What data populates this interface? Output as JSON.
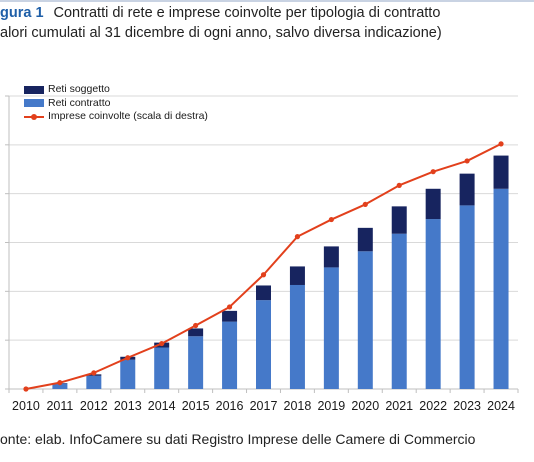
{
  "header": {
    "figure_label": "gura 1",
    "title": "Contratti di rete e imprese coinvolte per tipologia di contratto",
    "subtitle": "alori cumulati al 31 dicembre di ogni anno, salvo diversa indicazione)"
  },
  "footer": {
    "source": "onte: elab. InfoCamere su dati Registro Imprese delle Camere di Commercio"
  },
  "colors": {
    "reti_soggetto": "#17245f",
    "reti_contratto": "#4579c9",
    "imprese": "#e2401c",
    "axis": "#bfbfbf",
    "grid": "#d9d9d9"
  },
  "chart_data": {
    "type": "bar",
    "stacked": true,
    "grid": true,
    "legend_position": "top-left",
    "categories": [
      "2010",
      "2011",
      "2012",
      "2013",
      "2014",
      "2015",
      "2016",
      "2017",
      "2018",
      "2019",
      "2020",
      "2021",
      "2022",
      "2023",
      "2024"
    ],
    "ylim": [
      0,
      6
    ],
    "series": [
      {
        "name": "Reti contratto",
        "type": "bar",
        "color": "#4579c9",
        "values": [
          0.0,
          0.11,
          0.27,
          0.6,
          0.85,
          1.08,
          1.38,
          1.82,
          2.13,
          2.49,
          2.82,
          3.18,
          3.48,
          3.76,
          4.1
        ]
      },
      {
        "name": "Reti soggetto",
        "type": "bar",
        "color": "#17245f",
        "values": [
          0.0,
          0.01,
          0.03,
          0.06,
          0.1,
          0.16,
          0.22,
          0.3,
          0.38,
          0.43,
          0.48,
          0.56,
          0.62,
          0.65,
          0.68
        ]
      },
      {
        "name": "Imprese coinvolte (scala di destra)",
        "type": "line",
        "axis": "right",
        "color": "#e2401c",
        "values": [
          0.0,
          0.13,
          0.33,
          0.64,
          0.93,
          1.3,
          1.68,
          2.34,
          3.12,
          3.47,
          3.78,
          4.17,
          4.45,
          4.67,
          5.02
        ]
      }
    ]
  }
}
